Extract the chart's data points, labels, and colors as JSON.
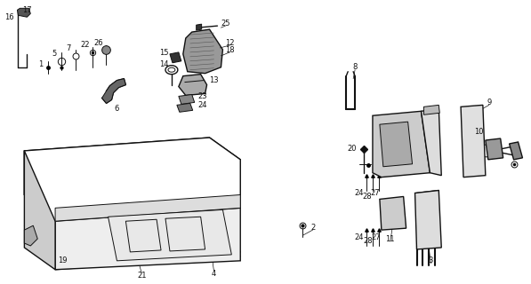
{
  "bg_color": "#ffffff",
  "line_color": "#111111",
  "fig_width": 5.97,
  "fig_height": 3.2,
  "dpi": 100,
  "gray_dark": "#444444",
  "gray_mid": "#888888",
  "gray_light": "#bbbbbb",
  "gray_hatch": "#999999"
}
